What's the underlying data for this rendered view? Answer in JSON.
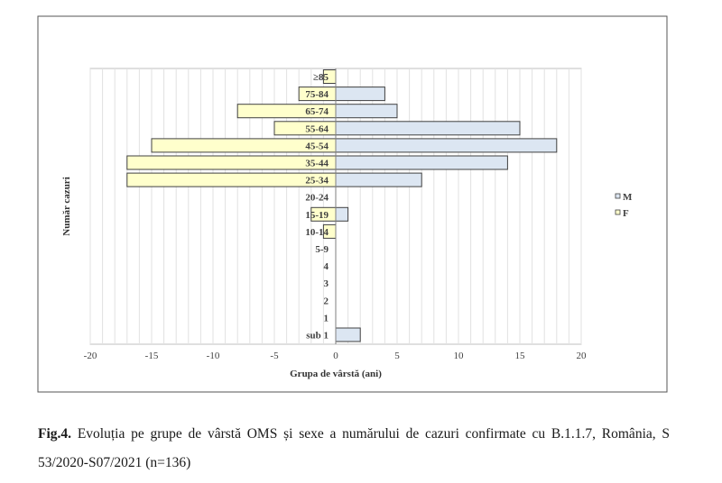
{
  "chart_data": {
    "type": "bar",
    "orientation": "horizontal",
    "title": "",
    "xlabel": "Grupa de vârstă (ani)",
    "ylabel": "Număr cazuri",
    "xlim": [
      -20,
      20
    ],
    "xticks": [
      -20,
      -15,
      -10,
      -5,
      0,
      5,
      10,
      15,
      20
    ],
    "grid": true,
    "legend_position": "right",
    "categories": [
      "≥85",
      "75-84",
      "65-74",
      "55-64",
      "45-54",
      "35-44",
      "25-34",
      "20-24",
      "15-19",
      "10-14",
      "5-9",
      "4",
      "3",
      "2",
      "1",
      "sub 1"
    ],
    "series": [
      {
        "name": "M",
        "color": "#dce6f2",
        "values": [
          0,
          4,
          5,
          15,
          18,
          14,
          7,
          0,
          1,
          0,
          0,
          0,
          0,
          0,
          0,
          2
        ]
      },
      {
        "name": "F",
        "color": "#ffffcc",
        "values": [
          -1,
          -3,
          -8,
          -5,
          -15,
          -17,
          -17,
          0,
          -2,
          -1,
          0,
          0,
          0,
          0,
          0,
          0
        ]
      }
    ]
  },
  "caption": {
    "label": "Fig.4.",
    "text": "Evoluția pe grupe de vârstă OMS și sexe a numărului de cazuri confirmate cu B.1.1.7, România, S 53/2020-S07/2021 (n=136)"
  }
}
